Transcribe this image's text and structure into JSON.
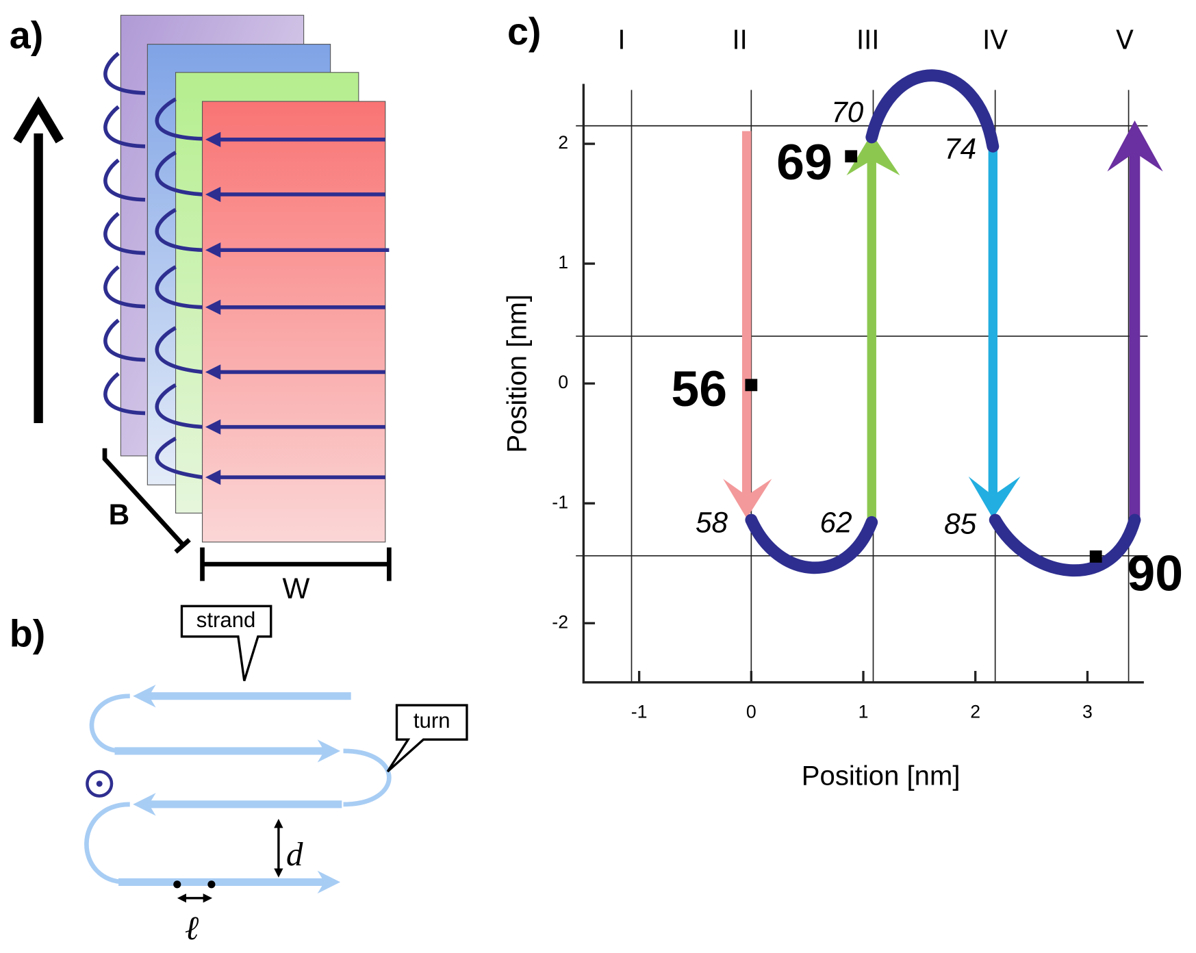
{
  "panel_a": {
    "label": "a)",
    "depth_label": "B",
    "width_label": "W"
  },
  "panel_b": {
    "label": "b)",
    "callouts": [
      "strand",
      "turn"
    ],
    "spacing_label": "d",
    "length_label": "ℓ"
  },
  "panel_c": {
    "label": "c)",
    "columns": [
      "I",
      "II",
      "III",
      "IV",
      "V"
    ],
    "xticks": [
      -1,
      0,
      1,
      2,
      3
    ],
    "yticks": [
      -2,
      -1,
      0,
      1,
      2
    ],
    "xlabel": "Position [nm]",
    "ylabel": "Position [nm]",
    "turn_residues": [
      "70",
      "74",
      "58",
      "62",
      "85"
    ],
    "marked_residues": [
      "56",
      "69",
      "90"
    ]
  }
}
